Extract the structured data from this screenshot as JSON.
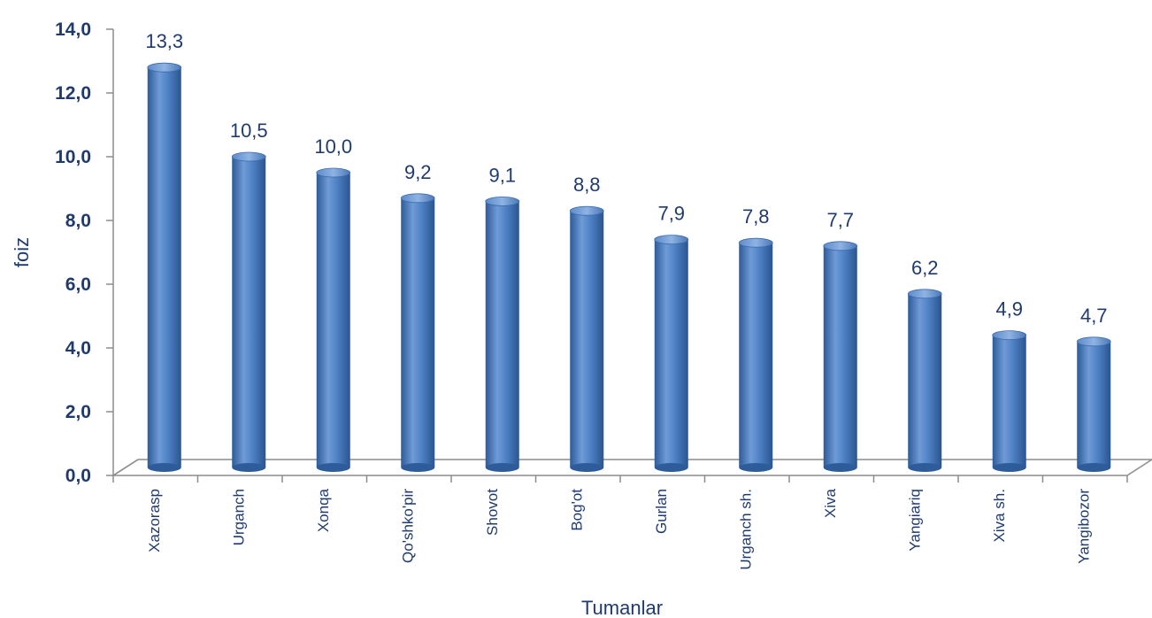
{
  "chart_data": {
    "type": "bar",
    "xlabel": "Tumanlar",
    "ylabel": "foiz",
    "ylim": [
      0,
      14
    ],
    "yticks": [
      "0,0",
      "2,0",
      "4,0",
      "6,0",
      "8,0",
      "10,0",
      "12,0",
      "14,0"
    ],
    "categories": [
      "Xazorasp",
      "Urganch",
      "Xonqa",
      "Qo'shko'pir",
      "Shovot",
      "Bog'ot",
      "Gurlan",
      "Urganch sh.",
      "Xiva",
      "Yangiariq",
      "Xiva sh.",
      "Yangibozor"
    ],
    "values": [
      13.3,
      10.5,
      10.0,
      9.2,
      9.1,
      8.8,
      7.9,
      7.8,
      7.7,
      6.2,
      4.9,
      4.7
    ],
    "value_labels": [
      "13,3",
      "10,5",
      "10,0",
      "9,2",
      "9,1",
      "8,8",
      "7,9",
      "7,8",
      "7,7",
      "6,2",
      "4,9",
      "4,7"
    ],
    "grid": false,
    "legend": "none",
    "colors": {
      "bar": "#4a7cc0",
      "bar_dark": "#2e5c9a",
      "bar_light": "#7ea6dc",
      "text": "#1f3b6e",
      "axis": "#8c8c8c"
    }
  }
}
